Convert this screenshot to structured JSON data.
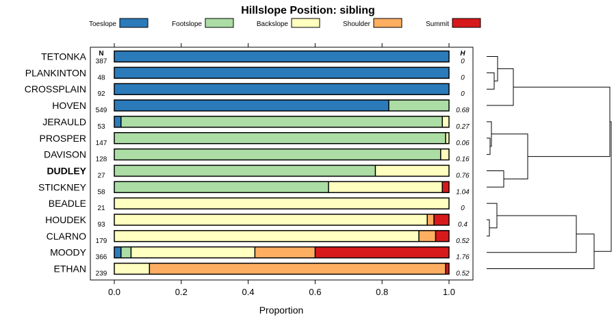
{
  "chart_data": {
    "type": "bar",
    "orientation": "horizontal",
    "stacked": true,
    "title": "Hillslope Position: sibling",
    "xlabel": "Proportion",
    "ylabel": "",
    "xlim": [
      0,
      1
    ],
    "xticks": [
      "0.0",
      "0.2",
      "0.4",
      "0.6",
      "0.8",
      "1.0"
    ],
    "n_header": "N",
    "h_header": "H",
    "legend_position": "top",
    "series": [
      {
        "name": "Toeslope",
        "color": "#2b7bba"
      },
      {
        "name": "Footslope",
        "color": "#abdda4"
      },
      {
        "name": "Backslope",
        "color": "#ffffbf"
      },
      {
        "name": "Shoulder",
        "color": "#fdae61"
      },
      {
        "name": "Summit",
        "color": "#d7191c"
      }
    ],
    "rows": [
      {
        "label": "TETONKA",
        "n": "387",
        "h": "0",
        "bold": false,
        "values": [
          1.0,
          0,
          0,
          0,
          0
        ]
      },
      {
        "label": "PLANKINTON",
        "n": "48",
        "h": "0",
        "bold": false,
        "values": [
          1.0,
          0,
          0,
          0,
          0
        ]
      },
      {
        "label": "CROSSPLAIN",
        "n": "92",
        "h": "0",
        "bold": false,
        "values": [
          1.0,
          0,
          0,
          0,
          0
        ]
      },
      {
        "label": "HOVEN",
        "n": "549",
        "h": "0.68",
        "bold": false,
        "values": [
          0.82,
          0.18,
          0,
          0,
          0
        ]
      },
      {
        "label": "JERAULD",
        "n": "53",
        "h": "0.27",
        "bold": false,
        "values": [
          0.02,
          0.96,
          0.02,
          0,
          0
        ]
      },
      {
        "label": "PROSPER",
        "n": "147",
        "h": "0.06",
        "bold": false,
        "values": [
          0,
          0.99,
          0.01,
          0,
          0
        ]
      },
      {
        "label": "DAVISON",
        "n": "128",
        "h": "0.16",
        "bold": false,
        "values": [
          0,
          0.975,
          0.025,
          0,
          0
        ]
      },
      {
        "label": "DUDLEY",
        "n": "27",
        "h": "0.76",
        "bold": true,
        "values": [
          0,
          0.78,
          0.22,
          0,
          0
        ]
      },
      {
        "label": "STICKNEY",
        "n": "58",
        "h": "1.04",
        "bold": false,
        "values": [
          0,
          0.64,
          0.34,
          0,
          0.02
        ]
      },
      {
        "label": "BEADLE",
        "n": "21",
        "h": "0",
        "bold": false,
        "values": [
          0,
          0,
          1.0,
          0,
          0
        ]
      },
      {
        "label": "HOUDEK",
        "n": "93",
        "h": "0.4",
        "bold": false,
        "values": [
          0,
          0,
          0.935,
          0.02,
          0.045
        ]
      },
      {
        "label": "CLARNO",
        "n": "179",
        "h": "0.52",
        "bold": false,
        "values": [
          0,
          0,
          0.91,
          0.05,
          0.04
        ]
      },
      {
        "label": "MOODY",
        "n": "366",
        "h": "1.76",
        "bold": false,
        "values": [
          0.02,
          0.03,
          0.37,
          0.18,
          0.4
        ]
      },
      {
        "label": "ETHAN",
        "n": "239",
        "h": "0.52",
        "bold": false,
        "values": [
          0,
          0,
          0.105,
          0.885,
          0.01
        ]
      }
    ]
  }
}
